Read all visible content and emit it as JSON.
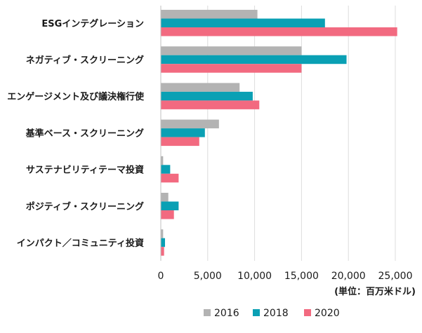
{
  "chart_data": {
    "type": "bar",
    "orientation": "horizontal",
    "categories": [
      "ESGインテグレーション",
      "ネガティブ・スクリーニング",
      "エンゲージメント及び議決権行使",
      "基準ベース・スクリーニング",
      "サステナビリティテーマ投資",
      "ポジティブ・スクリーニング",
      "インパクト／コミュニティ投資"
    ],
    "series": [
      {
        "name": "2016",
        "color": "#b3b3b3",
        "values": [
          10300,
          15000,
          8400,
          6200,
          250,
          800,
          250
        ]
      },
      {
        "name": "2018",
        "color": "#0aa0b4",
        "values": [
          17500,
          19800,
          9800,
          4700,
          1000,
          1900,
          450
        ]
      },
      {
        "name": "2020",
        "color": "#f26a80",
        "values": [
          25200,
          15000,
          10500,
          4100,
          1900,
          1400,
          350
        ]
      }
    ],
    "xlim": [
      0,
      25000
    ],
    "xticks": [
      "0",
      "5,000",
      "10,000",
      "15,000",
      "20,000",
      "25,000"
    ],
    "xtick_values": [
      0,
      5000,
      10000,
      15000,
      20000,
      25000
    ],
    "unit_label": "(単位：百万米ドル)",
    "grid": true,
    "legend_position": "bottom"
  }
}
